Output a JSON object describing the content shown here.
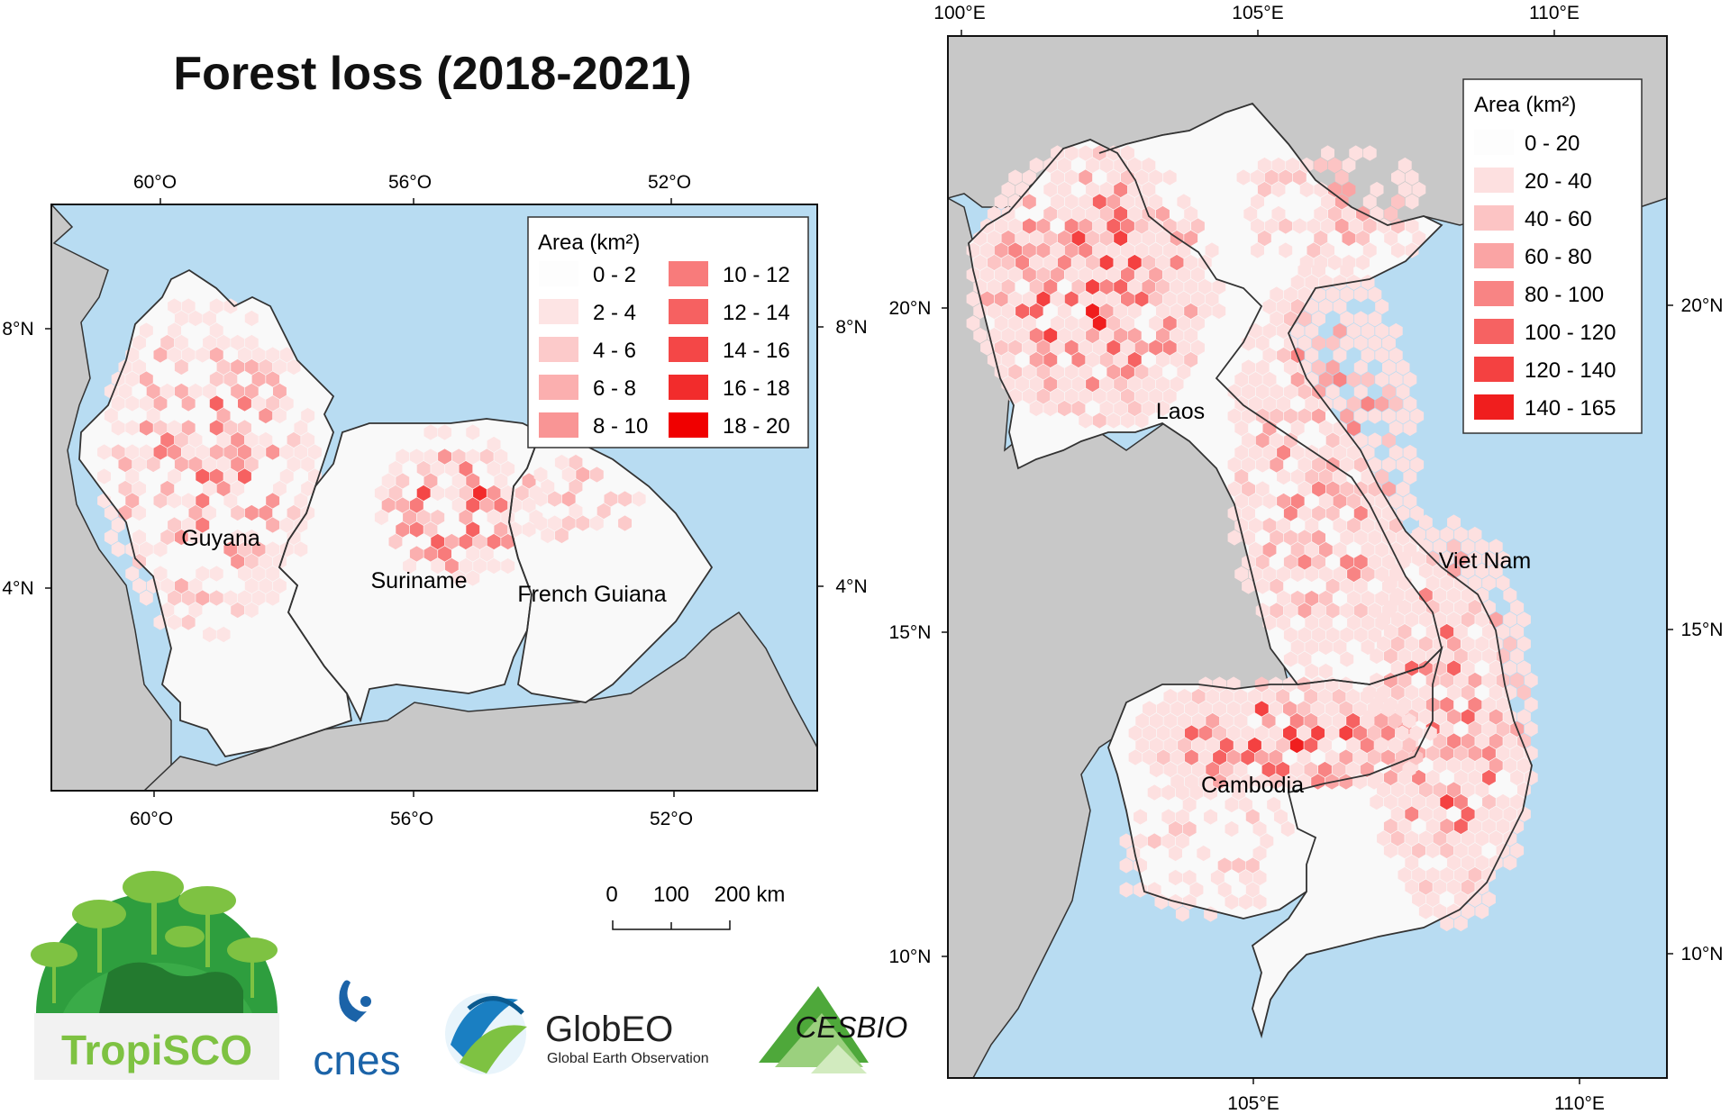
{
  "title": "Forest loss (2018-2021)",
  "colors": {
    "ocean": "#b8dcf2",
    "land": "#c8c8c8",
    "country": "#f9f9f9",
    "border": "#333333"
  },
  "map_left": {
    "lon_ticks": [
      "60°O",
      "56°O",
      "52°O"
    ],
    "lat_ticks": [
      "8°N",
      "4°N"
    ],
    "countries": [
      "Guyana",
      "Suriname",
      "French Guiana"
    ],
    "legend": {
      "title": "Area (km²)",
      "classes": [
        {
          "label": "0 - 2",
          "color": "#fdfdfd"
        },
        {
          "label": "2 - 4",
          "color": "#fde4e4"
        },
        {
          "label": "4 - 6",
          "color": "#fccaca"
        },
        {
          "label": "6 - 8",
          "color": "#fbafaf"
        },
        {
          "label": "8 - 10",
          "color": "#f99595"
        },
        {
          "label": "10 - 12",
          "color": "#f87b7b"
        },
        {
          "label": "12 - 14",
          "color": "#f66161"
        },
        {
          "label": "14 - 16",
          "color": "#f44747"
        },
        {
          "label": "16 - 18",
          "color": "#f22c2c"
        },
        {
          "label": "18 - 20",
          "color": "#f00000"
        }
      ]
    },
    "scale_bar": {
      "labels": [
        "0",
        "100",
        "200 km"
      ]
    }
  },
  "map_right": {
    "lon_ticks": [
      "100°E",
      "105°E",
      "110°E"
    ],
    "lat_ticks": [
      "20°N",
      "15°N",
      "10°N"
    ],
    "countries": [
      "Laos",
      "Viet Nam",
      "Cambodia"
    ],
    "legend": {
      "title": "Area (km²)",
      "classes": [
        {
          "label": "0 - 20",
          "color": "#fdfdfd"
        },
        {
          "label": "20 - 40",
          "color": "#fde0e0"
        },
        {
          "label": "40 - 60",
          "color": "#fcc4c4"
        },
        {
          "label": "60 - 80",
          "color": "#faa4a4"
        },
        {
          "label": "80 - 100",
          "color": "#f88484"
        },
        {
          "label": "100 - 120",
          "color": "#f66262"
        },
        {
          "label": "120 - 140",
          "color": "#f44141"
        },
        {
          "label": "140 - 165",
          "color": "#f01e1e"
        }
      ]
    }
  },
  "logos": {
    "tropisco": "TropiSCO",
    "cnes": "cnes",
    "globeo": "GlobEO",
    "globeo_sub": "Global Earth Observation",
    "cesbio": "CESBIO"
  }
}
